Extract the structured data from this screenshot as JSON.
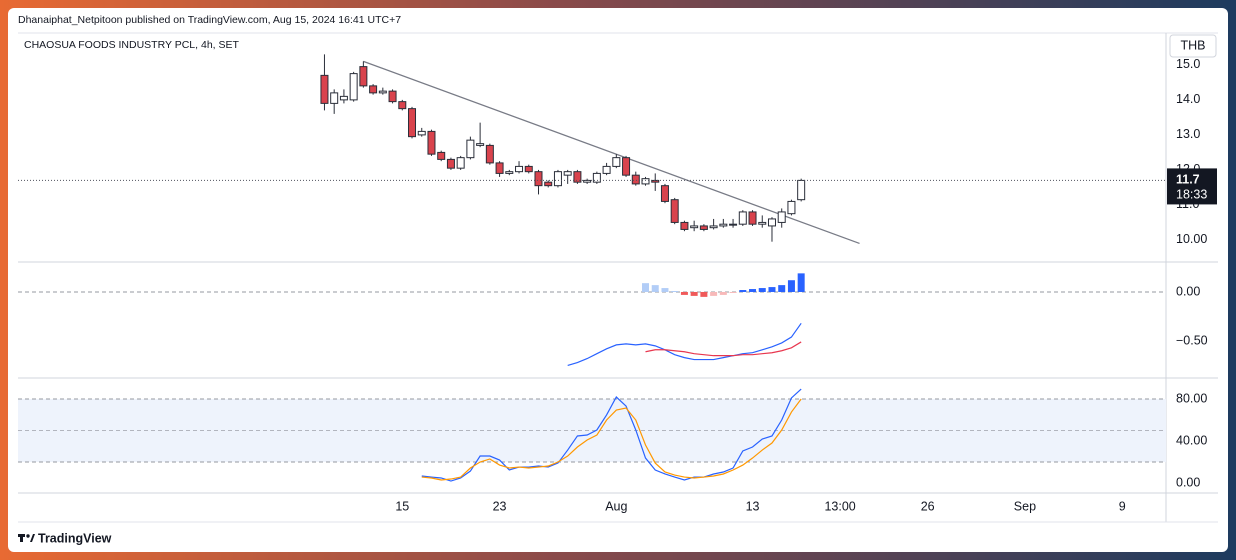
{
  "header": "Dhanaiphat_Netpitoon published on TradingView.com, Aug 15, 2024 16:41 UTC+7",
  "footer": "TradingView",
  "chart_data": [
    {
      "type": "candlestick",
      "title": "CHAOSUA FOODS INDUSTRY PCL, 4h, SET",
      "currency": "THB",
      "x": [
        31,
        32,
        33,
        34,
        35,
        36,
        37,
        38,
        39,
        40,
        41,
        42,
        43,
        44,
        45,
        46,
        47,
        48,
        49,
        50,
        51,
        52,
        53,
        54,
        55,
        56,
        57,
        58,
        59,
        60,
        61,
        62,
        63,
        64,
        65,
        66,
        67,
        68,
        69,
        70,
        71,
        72,
        73,
        74,
        75,
        76,
        77,
        78,
        79,
        80
      ],
      "open": [
        14.7,
        13.9,
        14.0,
        14.0,
        14.95,
        14.4,
        14.2,
        14.25,
        13.95,
        13.75,
        13.0,
        13.1,
        12.5,
        12.3,
        12.05,
        12.35,
        12.7,
        12.7,
        12.2,
        11.9,
        11.95,
        12.1,
        11.95,
        11.65,
        11.55,
        11.85,
        11.95,
        11.65,
        11.65,
        11.9,
        12.1,
        12.35,
        11.85,
        11.6,
        11.7,
        11.55,
        11.15,
        10.5,
        10.35,
        10.4,
        10.35,
        10.4,
        10.45,
        10.45,
        10.8,
        10.45,
        10.4,
        10.5,
        10.75,
        11.15
      ],
      "high": [
        15.3,
        14.3,
        14.3,
        14.8,
        15.1,
        14.45,
        14.35,
        14.3,
        14.0,
        13.8,
        13.2,
        13.15,
        12.55,
        12.35,
        12.4,
        12.95,
        13.35,
        12.75,
        12.25,
        12.0,
        12.25,
        12.15,
        12.0,
        11.7,
        12.0,
        12.0,
        12.0,
        11.75,
        11.95,
        12.2,
        12.45,
        12.4,
        11.95,
        11.8,
        11.9,
        11.6,
        11.2,
        10.55,
        10.55,
        10.45,
        10.6,
        10.6,
        10.6,
        10.85,
        10.85,
        10.7,
        10.65,
        10.9,
        11.15,
        11.75
      ],
      "low": [
        13.7,
        13.6,
        13.9,
        13.95,
        14.35,
        14.15,
        14.15,
        13.9,
        13.7,
        12.9,
        12.95,
        12.4,
        12.25,
        12.0,
        12.0,
        12.3,
        12.65,
        12.15,
        11.8,
        11.85,
        11.9,
        11.9,
        11.3,
        11.5,
        11.5,
        11.6,
        11.6,
        11.6,
        11.6,
        11.85,
        12.05,
        11.8,
        11.55,
        11.55,
        11.4,
        11.05,
        10.45,
        10.25,
        10.25,
        10.25,
        10.3,
        10.35,
        10.35,
        10.4,
        10.4,
        10.35,
        9.95,
        10.35,
        10.7,
        11.1
      ],
      "close": [
        13.9,
        14.2,
        14.1,
        14.75,
        14.4,
        14.2,
        14.25,
        13.95,
        13.75,
        12.95,
        13.1,
        12.45,
        12.3,
        12.05,
        12.35,
        12.85,
        12.75,
        12.2,
        11.9,
        11.95,
        12.1,
        11.95,
        11.55,
        11.55,
        11.95,
        11.95,
        11.65,
        11.7,
        11.9,
        12.1,
        12.35,
        11.85,
        11.6,
        11.75,
        11.65,
        11.1,
        10.5,
        10.3,
        10.4,
        10.3,
        10.4,
        10.45,
        10.45,
        10.8,
        10.45,
        10.5,
        10.6,
        10.8,
        11.1,
        11.7
      ],
      "up_color": "#ffffff",
      "down_color": "#d9434d",
      "wick_color": "#2a2e39",
      "xlim": [
        -0.5,
        117.5
      ],
      "xticks": [
        {
          "value": 39,
          "label": "15"
        },
        {
          "value": 49,
          "label": "23"
        },
        {
          "value": 61,
          "label": "Aug"
        },
        {
          "value": 75,
          "label": "13"
        },
        {
          "value": 84,
          "label": "13:00"
        },
        {
          "value": 93,
          "label": "26"
        },
        {
          "value": 103,
          "label": "Sep"
        },
        {
          "value": 113,
          "label": "9"
        }
      ],
      "ylim": [
        9.37,
        15.91
      ],
      "yticks": [
        {
          "value": 15,
          "label": "15.0"
        },
        {
          "value": 14,
          "label": "14.0"
        },
        {
          "value": 13,
          "label": "13.0"
        },
        {
          "value": 12,
          "label": "12.0"
        },
        {
          "value": 11,
          "label": "11.0"
        },
        {
          "value": 10,
          "label": "10.00"
        }
      ],
      "last_price": 11.7,
      "countdown": "18:33",
      "trendline": {
        "x": [
          35,
          86
        ],
        "values": [
          15.1,
          9.9
        ],
        "color": "#787b86"
      }
    },
    {
      "type": "macd",
      "ylim": [
        -0.878,
        0.306
      ],
      "yticks": [
        {
          "value": 0,
          "label": "0.00"
        },
        {
          "value": -0.5,
          "label": "−0.50"
        }
      ],
      "zero_line": true,
      "histogram": {
        "values": [
          null,
          null,
          null,
          null,
          null,
          null,
          null,
          null,
          null,
          null,
          null,
          null,
          null,
          null,
          null,
          null,
          null,
          null,
          null,
          null,
          null,
          null,
          null,
          null,
          null,
          null,
          null,
          null,
          null,
          null,
          null,
          null,
          null,
          0.09,
          0.07,
          0.04,
          0.01,
          -0.03,
          -0.04,
          -0.05,
          -0.04,
          -0.03,
          -0.01,
          0.02,
          0.03,
          0.04,
          0.05,
          0.07,
          0.12,
          0.19
        ],
        "colors": {
          "above_rising": "#2962ff",
          "above_falling": "#b2cdf7",
          "below_falling": "#f05a5a",
          "below_rising": "#f7b9b9"
        }
      },
      "series": [
        {
          "color": "#2962ff",
          "values": [
            null,
            null,
            null,
            null,
            null,
            null,
            null,
            null,
            null,
            null,
            null,
            null,
            null,
            null,
            null,
            null,
            null,
            null,
            null,
            null,
            null,
            null,
            null,
            null,
            null,
            -0.75,
            -0.72,
            -0.68,
            -0.63,
            -0.58,
            -0.54,
            -0.53,
            -0.54,
            -0.53,
            -0.55,
            -0.59,
            -0.64,
            -0.67,
            -0.69,
            -0.69,
            -0.69,
            -0.67,
            -0.65,
            -0.63,
            -0.62,
            -0.59,
            -0.56,
            -0.52,
            -0.46,
            -0.32
          ]
        },
        {
          "color": "#e8374f",
          "values": [
            null,
            null,
            null,
            null,
            null,
            null,
            null,
            null,
            null,
            null,
            null,
            null,
            null,
            null,
            null,
            null,
            null,
            null,
            null,
            null,
            null,
            null,
            null,
            null,
            null,
            null,
            null,
            null,
            null,
            null,
            null,
            null,
            null,
            -0.61,
            -0.59,
            -0.59,
            -0.6,
            -0.61,
            -0.63,
            -0.64,
            -0.65,
            -0.65,
            -0.65,
            -0.64,
            -0.64,
            -0.63,
            -0.62,
            -0.6,
            -0.57,
            -0.51
          ]
        }
      ]
    },
    {
      "type": "stochastic",
      "ylim": [
        -9.5,
        100
      ],
      "yticks": [
        {
          "value": 80,
          "label": "80.00"
        },
        {
          "value": 40,
          "label": "40.00"
        },
        {
          "value": 0,
          "label": "0.00"
        }
      ],
      "band": [
        20,
        80
      ],
      "middle": 50,
      "band_color": "#eef3fc",
      "series": [
        {
          "color": "#2962ff",
          "values": [
            null,
            null,
            null,
            null,
            null,
            null,
            null,
            null,
            null,
            null,
            6.7,
            5.7,
            4.8,
            1.9,
            4.8,
            11.4,
            25.7,
            25.7,
            21.9,
            12.4,
            15.2,
            15.2,
            16.2,
            15.2,
            19.0,
            31.4,
            44.8,
            45.7,
            50.5,
            64.8,
            81.9,
            73.3,
            50.5,
            23.8,
            12.4,
            8.6,
            5.7,
            2.9,
            5.7,
            5.7,
            8.6,
            10.5,
            14.3,
            30.5,
            34.3,
            41.9,
            44.8,
            60,
            81,
            89.5
          ]
        },
        {
          "color": "#ff9800",
          "values": [
            null,
            null,
            null,
            null,
            null,
            null,
            null,
            null,
            null,
            null,
            5.7,
            4.8,
            2.9,
            3.8,
            5.7,
            14.3,
            20,
            22.9,
            17.1,
            14.3,
            15.2,
            14.3,
            15.2,
            16.2,
            20,
            25.7,
            34.3,
            41,
            45.7,
            60,
            69.5,
            71.4,
            60,
            36.2,
            19,
            10.5,
            7.6,
            5.7,
            4.8,
            5.7,
            6.7,
            8.6,
            12.4,
            17.1,
            23.8,
            31.4,
            38.1,
            50.5,
            67.6,
            80
          ]
        }
      ]
    }
  ]
}
